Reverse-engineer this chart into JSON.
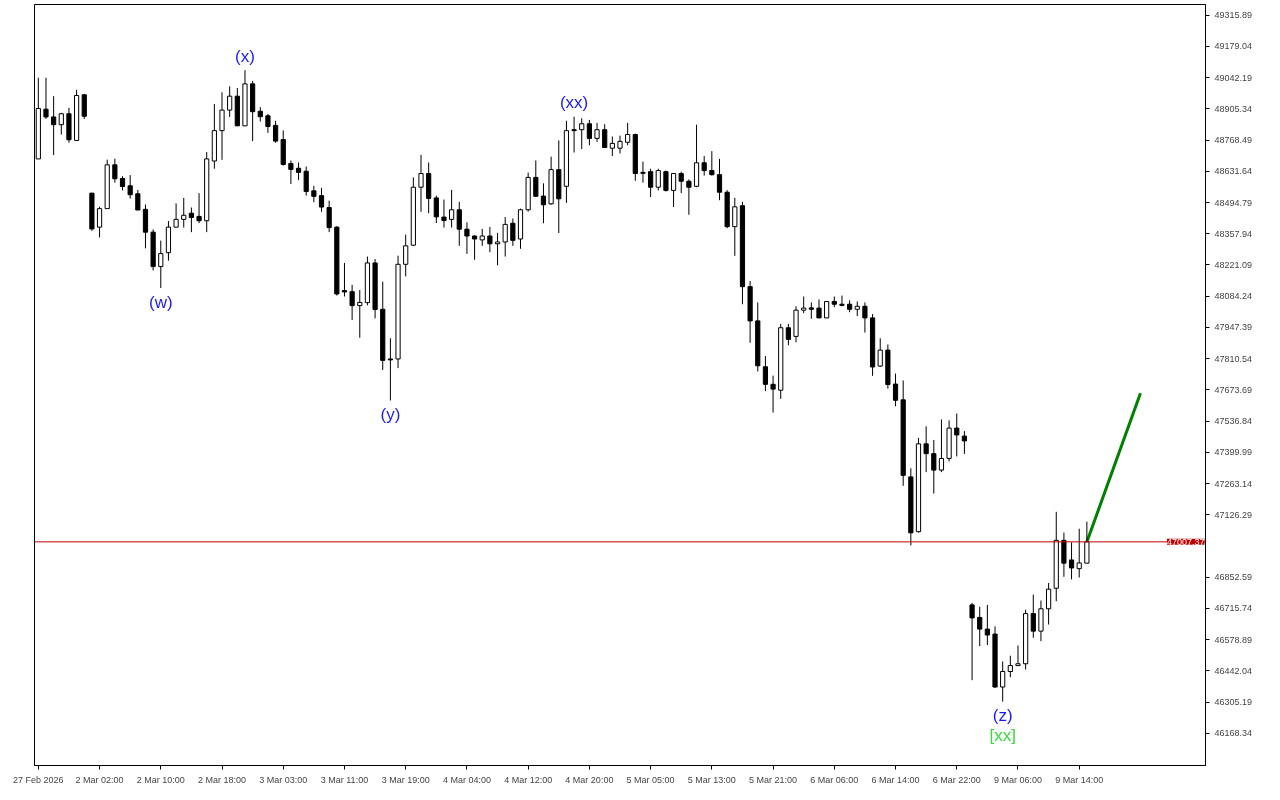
{
  "chart_data": {
    "type": "candlestick",
    "categories": [
      "27 Feb 2026",
      null,
      null,
      null,
      null,
      null,
      null,
      null,
      "2 Mar 02:00",
      null,
      null,
      null,
      null,
      null,
      null,
      null,
      "2 Mar 10:00",
      null,
      null,
      null,
      null,
      null,
      null,
      null,
      "2 Mar 18:00",
      null,
      null,
      null,
      null,
      null,
      null,
      null,
      "3 Mar 03:00",
      null,
      null,
      null,
      null,
      null,
      null,
      null,
      "3 Mar 11:00",
      null,
      null,
      null,
      null,
      null,
      null,
      null,
      "3 Mar 19:00",
      null,
      null,
      null,
      null,
      null,
      null,
      null,
      "4 Mar 04:00",
      null,
      null,
      null,
      null,
      null,
      null,
      null,
      "4 Mar 12:00",
      null,
      null,
      null,
      null,
      null,
      null,
      null,
      "4 Mar 20:00",
      null,
      null,
      null,
      null,
      null,
      null,
      null,
      "5 Mar 05:00",
      null,
      null,
      null,
      null,
      null,
      null,
      null,
      "5 Mar 13:00",
      null,
      null,
      null,
      null,
      null,
      null,
      null,
      "5 Mar 21:00",
      null,
      null,
      null,
      null,
      null,
      null,
      null,
      "6 Mar 06:00",
      null,
      null,
      null,
      null,
      null,
      null,
      null,
      "6 Mar 14:00",
      null,
      null,
      null,
      null,
      null,
      null,
      null,
      "6 Mar 22:00",
      null,
      null,
      null,
      null,
      null,
      null,
      null,
      "9 Mar 06:00",
      null,
      null,
      null,
      null,
      null,
      null,
      null,
      "9 Mar 14:00",
      null,
      null,
      null,
      null,
      null,
      null,
      null,
      null,
      null,
      null,
      null,
      null,
      null,
      null,
      null,
      null
    ],
    "ohlc": [
      [
        48686,
        49042,
        48686,
        48907
      ],
      [
        48904,
        49042,
        48861,
        48870
      ],
      [
        48870,
        48961,
        48703,
        48836
      ],
      [
        48836,
        48888,
        48793,
        48884
      ],
      [
        48884,
        48910,
        48757,
        48770
      ],
      [
        48767,
        48989,
        48767,
        48964
      ],
      [
        48967,
        48970,
        48861,
        48873
      ],
      [
        48536,
        48536,
        48371,
        48379
      ],
      [
        48387,
        48476,
        48342,
        48468
      ],
      [
        48468,
        48683,
        48468,
        48660
      ],
      [
        48660,
        48687,
        48582,
        48599
      ],
      [
        48600,
        48610,
        48548,
        48565
      ],
      [
        48568,
        48615,
        48512,
        48529
      ],
      [
        48533,
        48550,
        48462,
        48462
      ],
      [
        48465,
        48486,
        48294,
        48365
      ],
      [
        48365,
        48377,
        48197,
        48214
      ],
      [
        48214,
        48328,
        48120,
        48271
      ],
      [
        48275,
        48414,
        48240,
        48387
      ],
      [
        48387,
        48491,
        48387,
        48421
      ],
      [
        48421,
        48515,
        48385,
        48439
      ],
      [
        48448,
        48473,
        48365,
        48429
      ],
      [
        48434,
        48536,
        48405,
        48415
      ],
      [
        48415,
        48716,
        48365,
        48686
      ],
      [
        48677,
        48927,
        48643,
        48810
      ],
      [
        48810,
        48978,
        48682,
        48900
      ],
      [
        48900,
        49004,
        48870,
        48961
      ],
      [
        48961,
        48997,
        48831,
        48831
      ],
      [
        48831,
        49075,
        48831,
        49015
      ],
      [
        49015,
        49028,
        48764,
        48893
      ],
      [
        48895,
        48913,
        48850,
        48871
      ],
      [
        48875,
        48883,
        48800,
        48828
      ],
      [
        48833,
        48853,
        48757,
        48764
      ],
      [
        48771,
        48811,
        48657,
        48662
      ],
      [
        48666,
        48679,
        48576,
        48640
      ],
      [
        48645,
        48670,
        48593,
        48627
      ],
      [
        48632,
        48653,
        48525,
        48543
      ],
      [
        48546,
        48568,
        48496,
        48522
      ],
      [
        48525,
        48559,
        48454,
        48475
      ],
      [
        48473,
        48503,
        48365,
        48385
      ],
      [
        48387,
        48391,
        48087,
        48094
      ],
      [
        48109,
        48230,
        48083,
        48103
      ],
      [
        48104,
        48134,
        47980,
        48043
      ],
      [
        48043,
        48111,
        47902,
        48057
      ],
      [
        48056,
        48258,
        48044,
        48230
      ],
      [
        48230,
        48247,
        47987,
        48026
      ],
      [
        48027,
        48148,
        47761,
        47803
      ],
      [
        47809,
        47900,
        47627,
        47805
      ],
      [
        47809,
        48262,
        47769,
        48224
      ],
      [
        48224,
        48354,
        48171,
        48305
      ],
      [
        48308,
        48605,
        48304,
        48562
      ],
      [
        48562,
        48704,
        48454,
        48622
      ],
      [
        48622,
        48670,
        48448,
        48513
      ],
      [
        48515,
        48525,
        48405,
        48432
      ],
      [
        48431,
        48508,
        48385,
        48416
      ],
      [
        48421,
        48550,
        48385,
        48463
      ],
      [
        48463,
        48498,
        48305,
        48378
      ],
      [
        48378,
        48408,
        48270,
        48348
      ],
      [
        48348,
        48351,
        48244,
        48335
      ],
      [
        48331,
        48379,
        48305,
        48348
      ],
      [
        48348,
        48388,
        48277,
        48314
      ],
      [
        48314,
        48362,
        48220,
        48322
      ],
      [
        48322,
        48431,
        48258,
        48399
      ],
      [
        48404,
        48425,
        48305,
        48329
      ],
      [
        48335,
        48468,
        48292,
        48463
      ],
      [
        48463,
        48626,
        48455,
        48605
      ],
      [
        48605,
        48679,
        48522,
        48522
      ],
      [
        48523,
        48579,
        48404,
        48485
      ],
      [
        48489,
        48696,
        48485,
        48639
      ],
      [
        48639,
        48767,
        48361,
        48511
      ],
      [
        48566,
        48853,
        48493,
        48810
      ],
      [
        48814,
        48871,
        48714,
        48810
      ],
      [
        48814,
        48864,
        48729,
        48840
      ],
      [
        48840,
        48857,
        48746,
        48776
      ],
      [
        48776,
        48844,
        48761,
        48814
      ],
      [
        48814,
        48838,
        48736,
        48736
      ],
      [
        48733,
        48784,
        48699,
        48754
      ],
      [
        48733,
        48788,
        48710,
        48763
      ],
      [
        48759,
        48844,
        48746,
        48793
      ],
      [
        48793,
        48797,
        48590,
        48622
      ],
      [
        48627,
        48674,
        48582,
        48623
      ],
      [
        48630,
        48643,
        48519,
        48562
      ],
      [
        48562,
        48643,
        48548,
        48635
      ],
      [
        48630,
        48635,
        48543,
        48548
      ],
      [
        48548,
        48622,
        48475,
        48622
      ],
      [
        48622,
        48630,
        48536,
        48588
      ],
      [
        48588,
        48596,
        48441,
        48562
      ],
      [
        48566,
        48836,
        48562,
        48669
      ],
      [
        48669,
        48699,
        48613,
        48635
      ],
      [
        48635,
        48720,
        48613,
        48617
      ],
      [
        48617,
        48686,
        48505,
        48540
      ],
      [
        48540,
        48549,
        48382,
        48389
      ],
      [
        48389,
        48515,
        48261,
        48476
      ],
      [
        48481,
        48498,
        48049,
        48126
      ],
      [
        48126,
        48151,
        47880,
        47976
      ],
      [
        47976,
        48057,
        47754,
        47779
      ],
      [
        47775,
        47822,
        47668,
        47698
      ],
      [
        47698,
        47736,
        47574,
        47677
      ],
      [
        47672,
        47963,
        47634,
        47946
      ],
      [
        47946,
        47963,
        47869,
        47895
      ],
      [
        47908,
        48040,
        47882,
        48023
      ],
      [
        48023,
        48083,
        48010,
        48032
      ],
      [
        48033,
        48057,
        47985,
        48027
      ],
      [
        48032,
        48070,
        47989,
        47989
      ],
      [
        47989,
        48061,
        47989,
        48061
      ],
      [
        48061,
        48083,
        48036,
        48049
      ],
      [
        48049,
        48087,
        48040,
        48044
      ],
      [
        48049,
        48066,
        48014,
        48027
      ],
      [
        48027,
        48061,
        47997,
        48040
      ],
      [
        48040,
        48057,
        47925,
        47989
      ],
      [
        47989,
        48006,
        47735,
        47774
      ],
      [
        47778,
        47900,
        47774,
        47848
      ],
      [
        47848,
        47873,
        47679,
        47697
      ],
      [
        47699,
        47745,
        47602,
        47628
      ],
      [
        47630,
        47715,
        47253,
        47299
      ],
      [
        47292,
        47330,
        46992,
        47047
      ],
      [
        47052,
        47463,
        47048,
        47437
      ],
      [
        47437,
        47514,
        47313,
        47394
      ],
      [
        47394,
        47454,
        47219,
        47322
      ],
      [
        47322,
        47544,
        47313,
        47373
      ],
      [
        47373,
        47540,
        47360,
        47506
      ],
      [
        47506,
        47570,
        47382,
        47476
      ],
      [
        47471,
        47493,
        47393,
        47450
      ],
      [
        46731,
        46740,
        46401,
        46674
      ],
      [
        46676,
        46723,
        46550,
        46625
      ],
      [
        46625,
        46731,
        46555,
        46599
      ],
      [
        46603,
        46637,
        46367,
        46371
      ],
      [
        46371,
        46483,
        46307,
        46439
      ],
      [
        46439,
        46508,
        46414,
        46465
      ],
      [
        46465,
        46553,
        46465,
        46473
      ],
      [
        46473,
        46710,
        46448,
        46693
      ],
      [
        46693,
        46776,
        46587,
        46616
      ],
      [
        46616,
        46750,
        46572,
        46714
      ],
      [
        46714,
        46827,
        46645,
        46800
      ],
      [
        46804,
        47139,
        46747,
        47014
      ],
      [
        47014,
        47048,
        46854,
        46914
      ],
      [
        46928,
        47005,
        46843,
        46893
      ],
      [
        46890,
        47065,
        46851,
        46915
      ],
      [
        46914,
        47096,
        46914,
        47007.37
      ],
      null,
      null,
      null,
      null,
      null,
      null,
      null,
      null,
      null,
      null,
      null,
      null,
      null,
      null,
      null
    ],
    "color": "#000000",
    "series": [
      {
        "type": "line",
        "color": "#008000",
        "values": [
          null,
          null,
          null,
          null,
          null,
          null,
          null,
          null,
          null,
          null,
          null,
          null,
          null,
          null,
          null,
          null,
          null,
          null,
          null,
          null,
          null,
          null,
          null,
          null,
          null,
          null,
          null,
          null,
          null,
          null,
          null,
          null,
          null,
          null,
          null,
          null,
          null,
          null,
          null,
          null,
          null,
          null,
          null,
          null,
          null,
          null,
          null,
          null,
          null,
          null,
          null,
          null,
          null,
          null,
          null,
          null,
          null,
          null,
          null,
          null,
          null,
          null,
          null,
          null,
          null,
          null,
          null,
          null,
          null,
          null,
          null,
          null,
          null,
          null,
          null,
          null,
          null,
          null,
          null,
          null,
          null,
          null,
          null,
          null,
          null,
          null,
          null,
          null,
          null,
          null,
          null,
          null,
          null,
          null,
          null,
          null,
          null,
          null,
          null,
          null,
          null,
          null,
          null,
          null,
          null,
          null,
          null,
          null,
          null,
          null,
          null,
          null,
          null,
          null,
          null,
          null,
          null,
          null,
          null,
          null,
          null,
          null,
          null,
          null,
          null,
          null,
          null,
          null,
          null,
          null,
          null,
          null,
          null,
          null,
          null,
          null,
          null,
          47007,
          null,
          null,
          null,
          null,
          null,
          null,
          47659,
          null,
          null,
          null,
          null,
          null,
          null,
          null,
          null
        ]
      }
    ],
    "ref_lines": [
      {
        "axis": "y",
        "value": 47007.37,
        "label": "47007.37",
        "color": "#c00000"
      }
    ],
    "annotations": [
      "(w)",
      "(x)",
      "(y)",
      "(xx)",
      "(z)",
      "[xx]"
    ],
    "ylim": [
      46027.0,
      49362.9
    ],
    "yticks": [
      46168.34,
      46305.19,
      46442.04,
      46578.89,
      46715.74,
      46852.59,
      47126.29,
      47263.14,
      47399.99,
      47536.84,
      47673.69,
      47810.54,
      47947.39,
      48084.24,
      48221.09,
      48357.94,
      48494.79,
      48631.64,
      48768.49,
      48905.34,
      49042.19,
      49179.04,
      49315.89
    ],
    "grid": false
  }
}
